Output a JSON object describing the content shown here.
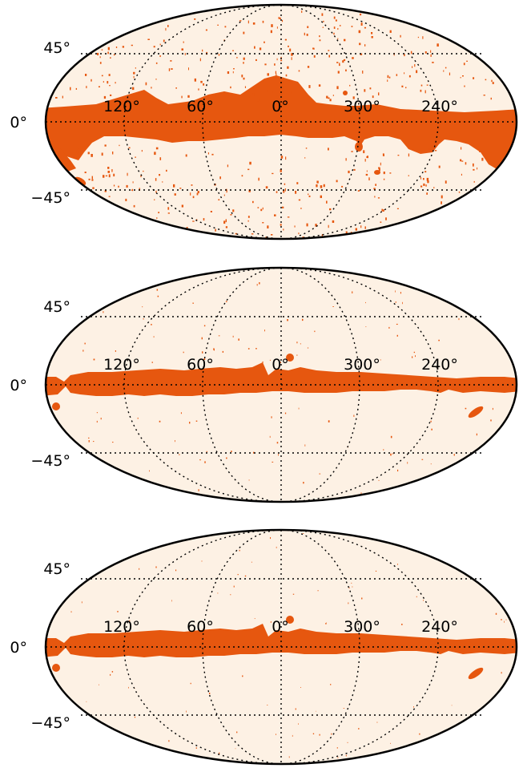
{
  "colors": {
    "background": "#fdf1e4",
    "mask": "#e6570f",
    "outline": "#000000",
    "grid": "#000000"
  },
  "grid": {
    "latitude_labels": [
      "45°",
      "0°",
      "−45°"
    ],
    "longitude_labels": [
      "120°",
      "60°",
      "0°",
      "300°",
      "240°"
    ]
  },
  "maps": [
    {
      "name": "map-top",
      "description_level": "wide galactic-plane mask with dense point sources"
    },
    {
      "name": "map-middle",
      "description_level": "narrower galactic-plane mask with sparse point sources"
    },
    {
      "name": "map-bottom",
      "description_level": "narrower galactic-plane mask with very sparse point sources"
    }
  ]
}
